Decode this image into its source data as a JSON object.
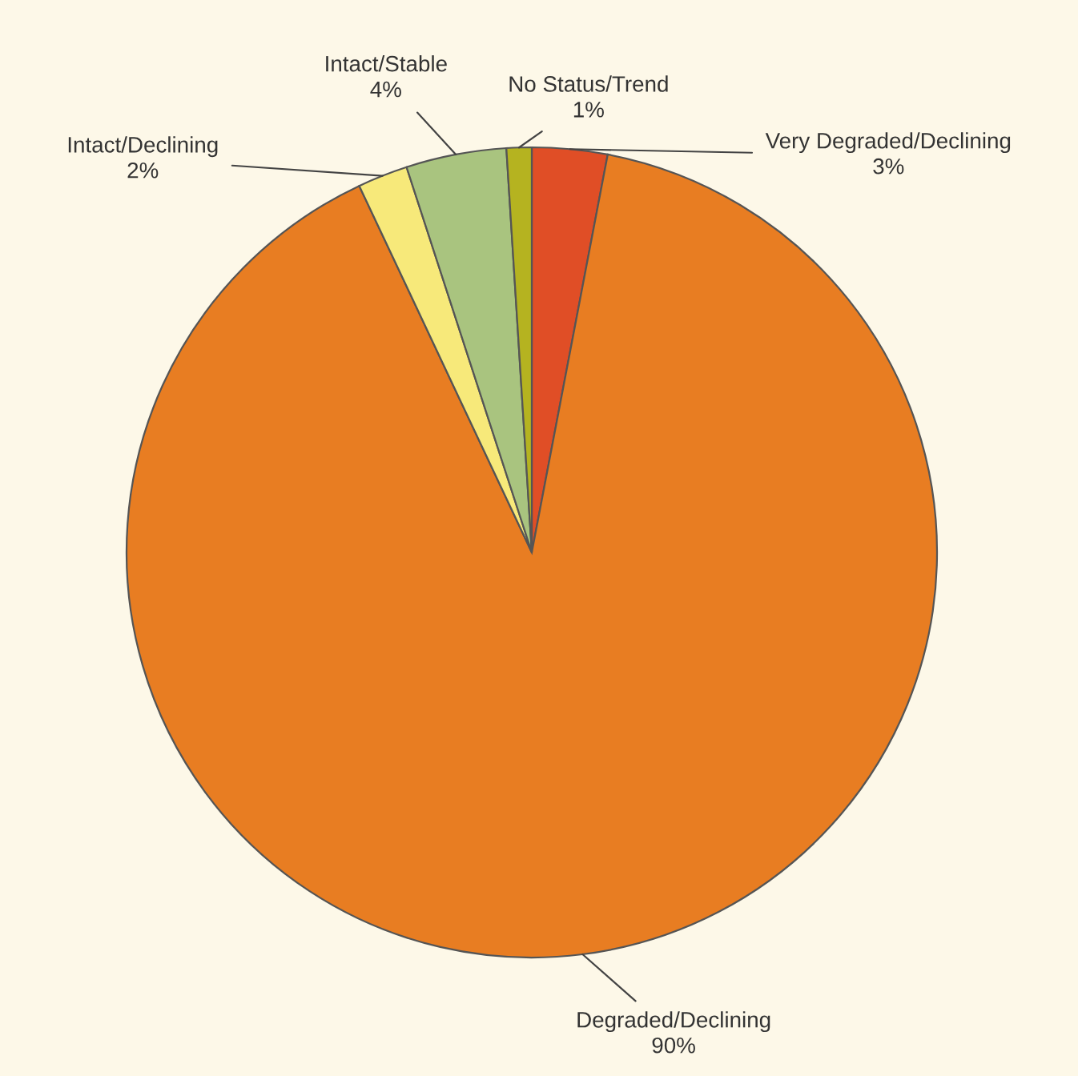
{
  "chart_data": {
    "type": "pie",
    "categories": [
      "Very Degraded/Declining",
      "Degraded/Declining",
      "Intact/Declining",
      "Intact/Stable",
      "No Status/Trend"
    ],
    "values": [
      3,
      90,
      2,
      4,
      1
    ],
    "value_labels": [
      "3%",
      "90%",
      "2%",
      "4%",
      "1%"
    ],
    "colors": [
      "#e04e26",
      "#e87d22",
      "#f7e97a",
      "#a9c47f",
      "#b5b320"
    ],
    "legend": false
  }
}
